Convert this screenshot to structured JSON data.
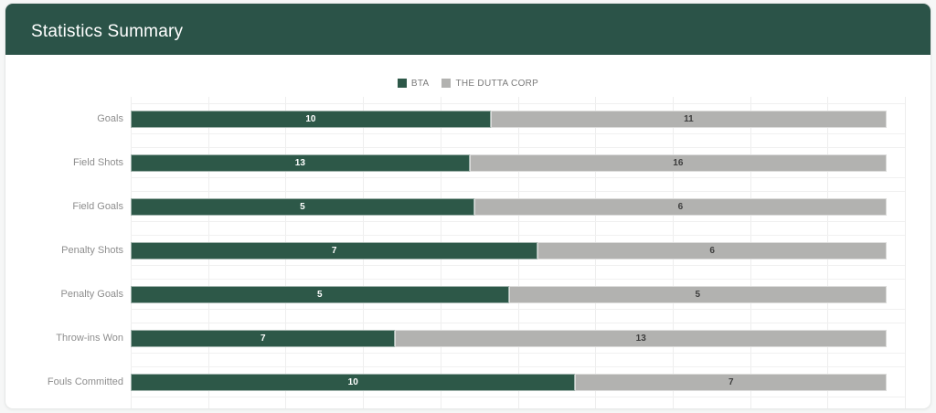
{
  "header": {
    "title": "Statistics Summary",
    "bg_color": "#2b5348",
    "text_color": "#ffffff"
  },
  "colors": {
    "bta": "#2d5848",
    "dutta_corp": "#b2b2b0",
    "gridline": "#eeeeee",
    "row_label": "#8e8e8e"
  },
  "chart_data": {
    "type": "bar",
    "subtype": "horizontal-100pct-stacked",
    "title": "Statistics Summary",
    "categories": [
      "Goals",
      "Field Shots",
      "Field Goals",
      "Penalty Shots",
      "Penalty Goals",
      "Throw-ins Won",
      "Fouls Committed"
    ],
    "series": [
      {
        "name": "BTA",
        "color": "#2d5848",
        "values": [
          10,
          13,
          5,
          7,
          5,
          7,
          10
        ]
      },
      {
        "name": "THE DUTTA CORP",
        "color": "#b2b2b0",
        "values": [
          11,
          16,
          6,
          6,
          5,
          13,
          7
        ]
      }
    ],
    "grid": true,
    "gridline_count": 11,
    "legend_position": "top-center",
    "value_labels": "inside-center",
    "xlabel": "",
    "ylabel": ""
  }
}
